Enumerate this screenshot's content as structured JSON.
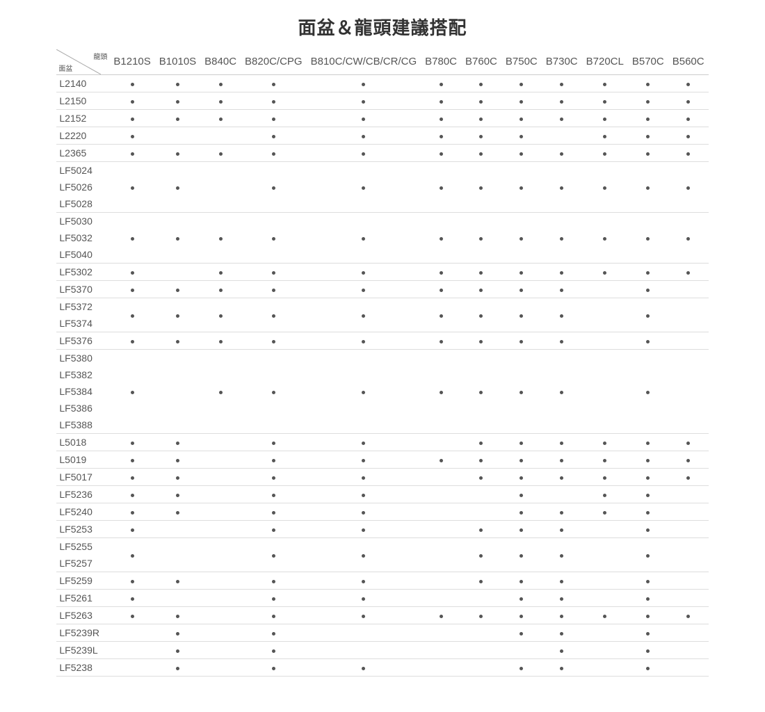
{
  "title": "面盆＆龍頭建議搭配",
  "corner_top": "龍頭",
  "corner_bottom": "面盆",
  "columns": [
    "B1210S",
    "B1010S",
    "B840C",
    "B820C/CPG",
    "B810C/CW/CB/CR/CG",
    "B780C",
    "B760C",
    "B750C",
    "B730C",
    "B720CL",
    "B570C",
    "B560C"
  ],
  "groups": [
    {
      "rows": [
        "L2140"
      ],
      "dots": [
        1,
        1,
        1,
        1,
        1,
        1,
        1,
        1,
        1,
        1,
        1,
        1
      ]
    },
    {
      "rows": [
        "L2150"
      ],
      "dots": [
        1,
        1,
        1,
        1,
        1,
        1,
        1,
        1,
        1,
        1,
        1,
        1
      ]
    },
    {
      "rows": [
        "L2152"
      ],
      "dots": [
        1,
        1,
        1,
        1,
        1,
        1,
        1,
        1,
        1,
        1,
        1,
        1
      ]
    },
    {
      "rows": [
        "L2220"
      ],
      "dots": [
        1,
        0,
        0,
        1,
        1,
        1,
        1,
        1,
        0,
        1,
        1,
        1
      ]
    },
    {
      "rows": [
        "L2365"
      ],
      "dots": [
        1,
        1,
        1,
        1,
        1,
        1,
        1,
        1,
        1,
        1,
        1,
        1
      ]
    },
    {
      "rows": [
        "LF5024",
        "LF5026",
        "LF5028"
      ],
      "dots": [
        1,
        1,
        0,
        1,
        1,
        1,
        1,
        1,
        1,
        1,
        1,
        1
      ]
    },
    {
      "rows": [
        "LF5030",
        "LF5032",
        "LF5040"
      ],
      "dots": [
        1,
        1,
        1,
        1,
        1,
        1,
        1,
        1,
        1,
        1,
        1,
        1
      ]
    },
    {
      "rows": [
        "LF5302"
      ],
      "dots": [
        1,
        0,
        1,
        1,
        1,
        1,
        1,
        1,
        1,
        1,
        1,
        1
      ]
    },
    {
      "rows": [
        "LF5370"
      ],
      "dots": [
        1,
        1,
        1,
        1,
        1,
        1,
        1,
        1,
        1,
        0,
        1,
        0
      ]
    },
    {
      "rows": [
        "LF5372",
        "LF5374"
      ],
      "dots": [
        1,
        1,
        1,
        1,
        1,
        1,
        1,
        1,
        1,
        0,
        1,
        0
      ]
    },
    {
      "rows": [
        "LF5376"
      ],
      "dots": [
        1,
        1,
        1,
        1,
        1,
        1,
        1,
        1,
        1,
        0,
        1,
        0
      ]
    },
    {
      "rows": [
        "LF5380",
        "LF5382",
        "LF5384",
        "LF5386",
        "LF5388"
      ],
      "dots": [
        1,
        0,
        1,
        1,
        1,
        1,
        1,
        1,
        1,
        0,
        1,
        0
      ]
    },
    {
      "rows": [
        "L5018"
      ],
      "dots": [
        1,
        1,
        0,
        1,
        1,
        0,
        1,
        1,
        1,
        1,
        1,
        1
      ]
    },
    {
      "rows": [
        "L5019"
      ],
      "dots": [
        1,
        1,
        0,
        1,
        1,
        1,
        1,
        1,
        1,
        1,
        1,
        1
      ]
    },
    {
      "rows": [
        "LF5017"
      ],
      "dots": [
        1,
        1,
        0,
        1,
        1,
        0,
        1,
        1,
        1,
        1,
        1,
        1
      ]
    },
    {
      "rows": [
        "LF5236"
      ],
      "dots": [
        1,
        1,
        0,
        1,
        1,
        0,
        0,
        1,
        0,
        1,
        1,
        0
      ]
    },
    {
      "rows": [
        "LF5240"
      ],
      "dots": [
        1,
        1,
        0,
        1,
        1,
        0,
        0,
        1,
        1,
        1,
        1,
        0
      ]
    },
    {
      "rows": [
        "LF5253"
      ],
      "dots": [
        1,
        0,
        0,
        1,
        1,
        0,
        1,
        1,
        1,
        0,
        1,
        0
      ]
    },
    {
      "rows": [
        "LF5255",
        "LF5257"
      ],
      "dots": [
        1,
        0,
        0,
        1,
        1,
        0,
        1,
        1,
        1,
        0,
        1,
        0
      ]
    },
    {
      "rows": [
        "LF5259"
      ],
      "dots": [
        1,
        1,
        0,
        1,
        1,
        0,
        1,
        1,
        1,
        0,
        1,
        0
      ]
    },
    {
      "rows": [
        "LF5261"
      ],
      "dots": [
        1,
        0,
        0,
        1,
        1,
        0,
        0,
        1,
        1,
        0,
        1,
        0
      ]
    },
    {
      "rows": [
        "LF5263"
      ],
      "dots": [
        1,
        1,
        0,
        1,
        1,
        1,
        1,
        1,
        1,
        1,
        1,
        1
      ]
    },
    {
      "rows": [
        "LF5239R"
      ],
      "dots": [
        0,
        1,
        0,
        1,
        0,
        0,
        0,
        1,
        1,
        0,
        1,
        0
      ]
    },
    {
      "rows": [
        "LF5239L"
      ],
      "dots": [
        0,
        1,
        0,
        1,
        0,
        0,
        0,
        0,
        1,
        0,
        1,
        0
      ]
    },
    {
      "rows": [
        "LF5238"
      ],
      "dots": [
        0,
        1,
        0,
        1,
        1,
        0,
        0,
        1,
        1,
        0,
        1,
        0
      ]
    }
  ],
  "styling": {
    "dot_color": "#555555",
    "border_color": "#dddddd",
    "header_border_color": "#cccccc",
    "background": "#ffffff",
    "title_fontsize": 26,
    "header_fontsize": 15,
    "cell_fontsize": 14
  }
}
